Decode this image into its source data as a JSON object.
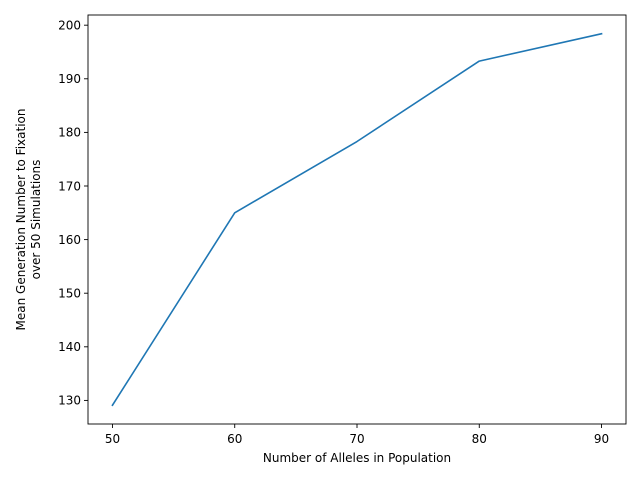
{
  "chart_data": {
    "type": "line",
    "title": "",
    "xlabel": "Number of Alleles in Population",
    "ylabel_lines": [
      "Mean Generation Number to Fixation",
      "over 50 Simulations"
    ],
    "x": [
      50,
      60,
      70,
      80,
      90
    ],
    "series": [
      {
        "values": [
          129.1,
          165.0,
          178.3,
          193.3,
          198.4
        ],
        "color": "#1f77b4"
      }
    ],
    "xlim": [
      48,
      92
    ],
    "ylim": [
      125.6,
      201.9
    ],
    "xticks": [
      50,
      60,
      70,
      80,
      90
    ],
    "yticks": [
      130,
      140,
      150,
      160,
      170,
      180,
      190,
      200
    ],
    "grid": false,
    "legend": "none"
  }
}
